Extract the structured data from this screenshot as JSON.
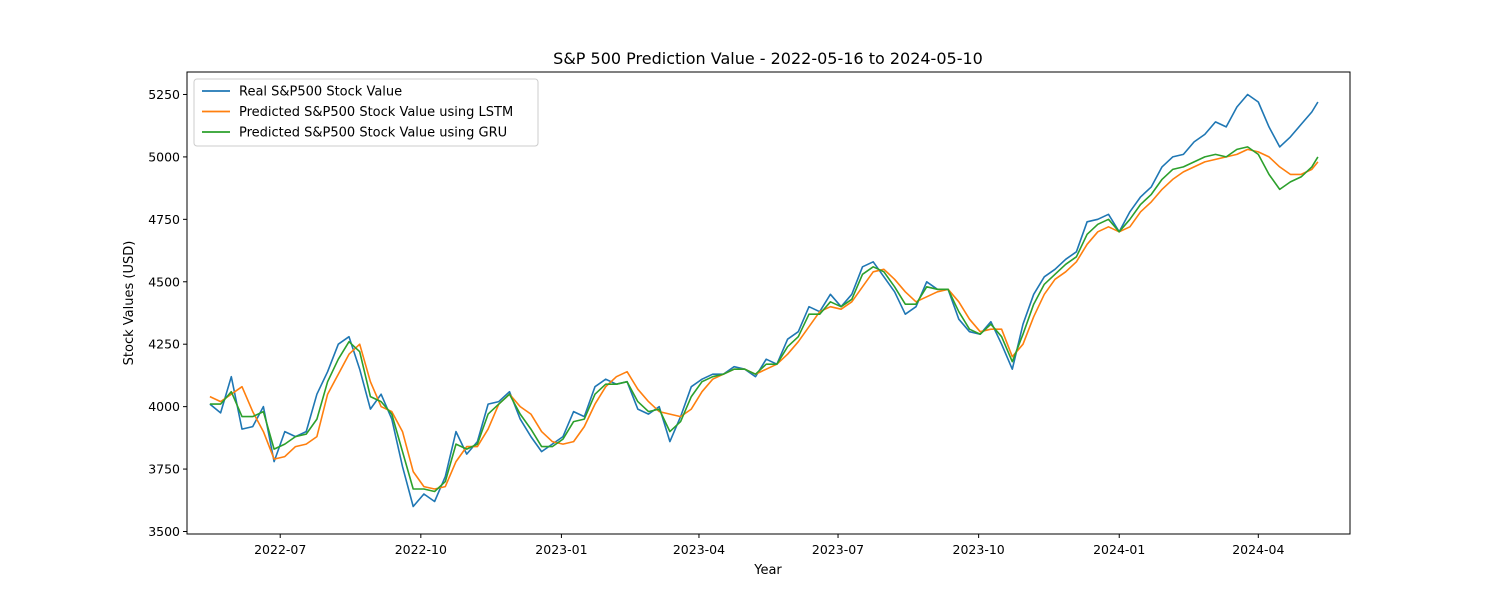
{
  "chart_data": {
    "type": "line",
    "title": "S&P 500 Prediction Value - 2022-05-16 to 2024-05-10",
    "xlabel": "Year",
    "ylabel": "Stock Values (USD)",
    "x_range": [
      "2022-05-01",
      "2024-05-31"
    ],
    "ylim": [
      3490,
      5340
    ],
    "grid": false,
    "legend_position": "top-left",
    "x_ticks": [
      {
        "date": "2022-07-01",
        "label": "2022-07"
      },
      {
        "date": "2022-10-01",
        "label": "2022-10"
      },
      {
        "date": "2023-01-01",
        "label": "2023-01"
      },
      {
        "date": "2023-04-01",
        "label": "2023-04"
      },
      {
        "date": "2023-07-01",
        "label": "2023-07"
      },
      {
        "date": "2023-10-01",
        "label": "2023-10"
      },
      {
        "date": "2024-01-01",
        "label": "2024-01"
      },
      {
        "date": "2024-04-01",
        "label": "2024-04"
      }
    ],
    "y_ticks": [
      3500,
      3750,
      4000,
      4250,
      4500,
      4750,
      5000,
      5250
    ],
    "x": [
      "2022-05-16",
      "2022-05-23",
      "2022-05-30",
      "2022-06-06",
      "2022-06-13",
      "2022-06-20",
      "2022-06-27",
      "2022-07-04",
      "2022-07-11",
      "2022-07-18",
      "2022-07-25",
      "2022-08-01",
      "2022-08-08",
      "2022-08-15",
      "2022-08-22",
      "2022-08-29",
      "2022-09-05",
      "2022-09-12",
      "2022-09-19",
      "2022-09-26",
      "2022-10-03",
      "2022-10-10",
      "2022-10-17",
      "2022-10-24",
      "2022-10-31",
      "2022-11-07",
      "2022-11-14",
      "2022-11-21",
      "2022-11-28",
      "2022-12-05",
      "2022-12-12",
      "2022-12-19",
      "2022-12-26",
      "2023-01-02",
      "2023-01-09",
      "2023-01-16",
      "2023-01-23",
      "2023-01-30",
      "2023-02-06",
      "2023-02-13",
      "2023-02-20",
      "2023-02-27",
      "2023-03-06",
      "2023-03-13",
      "2023-03-20",
      "2023-03-27",
      "2023-04-03",
      "2023-04-10",
      "2023-04-17",
      "2023-04-24",
      "2023-05-01",
      "2023-05-08",
      "2023-05-15",
      "2023-05-22",
      "2023-05-29",
      "2023-06-05",
      "2023-06-12",
      "2023-06-19",
      "2023-06-26",
      "2023-07-03",
      "2023-07-10",
      "2023-07-17",
      "2023-07-24",
      "2023-07-31",
      "2023-08-07",
      "2023-08-14",
      "2023-08-21",
      "2023-08-28",
      "2023-09-04",
      "2023-09-11",
      "2023-09-18",
      "2023-09-25",
      "2023-10-02",
      "2023-10-09",
      "2023-10-16",
      "2023-10-23",
      "2023-10-30",
      "2023-11-06",
      "2023-11-13",
      "2023-11-20",
      "2023-11-27",
      "2023-12-04",
      "2023-12-11",
      "2023-12-18",
      "2023-12-25",
      "2024-01-01",
      "2024-01-08",
      "2024-01-15",
      "2024-01-22",
      "2024-01-29",
      "2024-02-05",
      "2024-02-12",
      "2024-02-19",
      "2024-02-26",
      "2024-03-04",
      "2024-03-11",
      "2024-03-18",
      "2024-03-25",
      "2024-04-01",
      "2024-04-08",
      "2024-04-15",
      "2024-04-22",
      "2024-04-29",
      "2024-05-06",
      "2024-05-10"
    ],
    "series": [
      {
        "name": "Real S&P500 Stock Value",
        "color": "#1f77b4",
        "values": [
          4010,
          3975,
          4120,
          3910,
          3920,
          4000,
          3780,
          3900,
          3880,
          3900,
          4050,
          4140,
          4250,
          4280,
          4150,
          3990,
          4050,
          3950,
          3760,
          3600,
          3650,
          3620,
          3720,
          3900,
          3810,
          3860,
          4010,
          4020,
          4060,
          3950,
          3880,
          3820,
          3850,
          3880,
          3980,
          3960,
          4080,
          4110,
          4090,
          4100,
          3990,
          3970,
          4000,
          3860,
          3960,
          4080,
          4110,
          4130,
          4130,
          4160,
          4150,
          4120,
          4190,
          4170,
          4270,
          4300,
          4400,
          4380,
          4450,
          4400,
          4450,
          4560,
          4580,
          4520,
          4460,
          4370,
          4400,
          4500,
          4470,
          4470,
          4350,
          4300,
          4290,
          4340,
          4250,
          4150,
          4330,
          4450,
          4520,
          4550,
          4590,
          4620,
          4740,
          4750,
          4770,
          4700,
          4780,
          4840,
          4880,
          4960,
          5000,
          5010,
          5060,
          5090,
          5140,
          5120,
          5200,
          5250,
          5220,
          5120,
          5040,
          5080,
          5130,
          5180,
          5220
        ]
      },
      {
        "name": "Predicted S&P500 Stock Value using LSTM",
        "color": "#ff7f0e",
        "values": [
          4040,
          4020,
          4050,
          4080,
          3980,
          3900,
          3790,
          3800,
          3840,
          3850,
          3880,
          4050,
          4130,
          4210,
          4250,
          4100,
          4000,
          3980,
          3900,
          3740,
          3680,
          3670,
          3680,
          3780,
          3840,
          3840,
          3910,
          4010,
          4050,
          4000,
          3970,
          3900,
          3860,
          3850,
          3860,
          3920,
          4010,
          4080,
          4120,
          4140,
          4070,
          4020,
          3980,
          3970,
          3960,
          3990,
          4060,
          4110,
          4130,
          4150,
          4150,
          4130,
          4150,
          4170,
          4210,
          4260,
          4320,
          4380,
          4400,
          4390,
          4420,
          4480,
          4540,
          4550,
          4510,
          4460,
          4420,
          4440,
          4460,
          4470,
          4420,
          4350,
          4300,
          4310,
          4310,
          4200,
          4250,
          4360,
          4450,
          4510,
          4540,
          4580,
          4650,
          4700,
          4720,
          4700,
          4720,
          4780,
          4820,
          4870,
          4910,
          4940,
          4960,
          4980,
          4990,
          5000,
          5010,
          5030,
          5020,
          5000,
          4960,
          4930,
          4930,
          4950,
          4980
        ]
      },
      {
        "name": "Predicted S&P500 Stock Value using GRU",
        "color": "#2ca02c",
        "values": [
          4010,
          4010,
          4060,
          3960,
          3960,
          3980,
          3830,
          3850,
          3880,
          3890,
          3950,
          4100,
          4190,
          4260,
          4220,
          4040,
          4020,
          3970,
          3820,
          3670,
          3670,
          3660,
          3700,
          3850,
          3830,
          3850,
          3970,
          4010,
          4050,
          3970,
          3910,
          3840,
          3840,
          3870,
          3940,
          3950,
          4050,
          4090,
          4090,
          4100,
          4020,
          3980,
          3990,
          3900,
          3940,
          4040,
          4100,
          4120,
          4130,
          4150,
          4150,
          4130,
          4170,
          4170,
          4240,
          4280,
          4370,
          4370,
          4420,
          4400,
          4430,
          4530,
          4560,
          4540,
          4480,
          4410,
          4410,
          4480,
          4470,
          4470,
          4380,
          4310,
          4290,
          4330,
          4280,
          4180,
          4290,
          4410,
          4490,
          4530,
          4570,
          4600,
          4690,
          4730,
          4750,
          4700,
          4750,
          4810,
          4850,
          4910,
          4950,
          4960,
          4980,
          5000,
          5010,
          5000,
          5030,
          5040,
          5010,
          4930,
          4870,
          4900,
          4920,
          4960,
          5000
        ]
      }
    ]
  }
}
